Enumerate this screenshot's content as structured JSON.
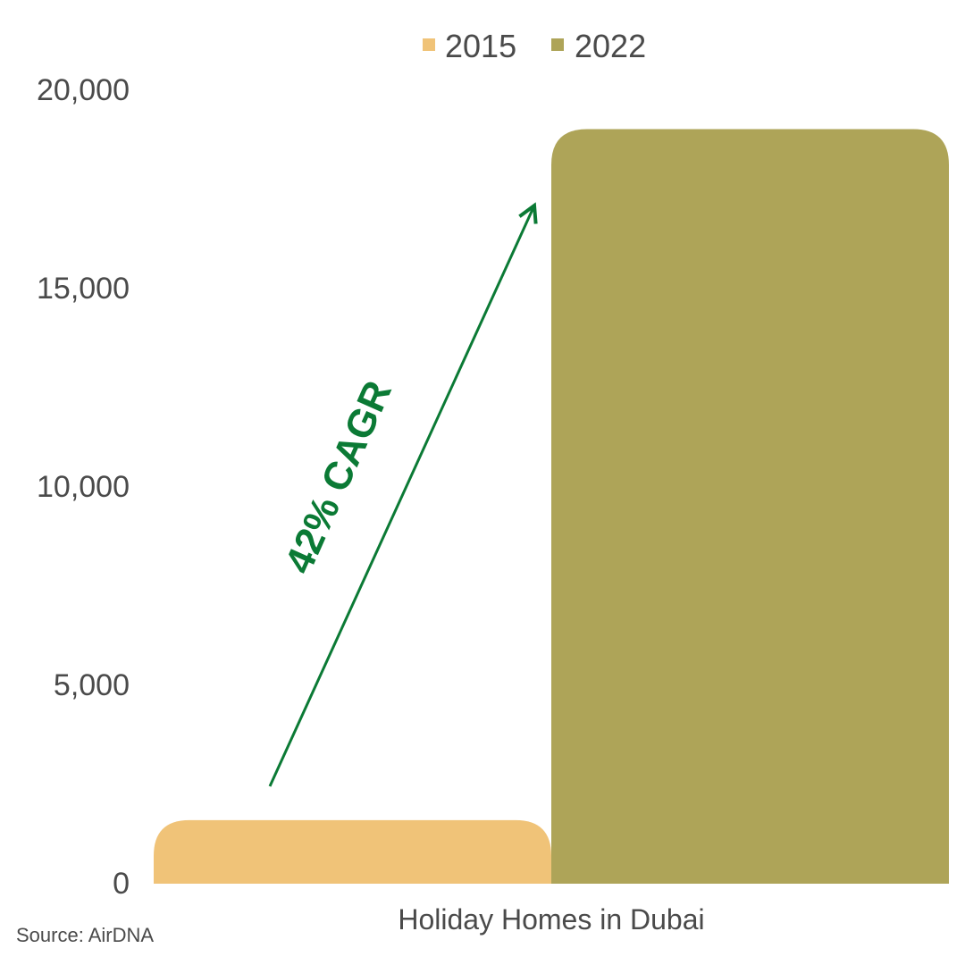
{
  "chart_data": {
    "type": "bar",
    "categories": [
      "Holiday Homes in Dubai"
    ],
    "series": [
      {
        "name": "2015",
        "values": [
          1600
        ],
        "color": "#f0c378"
      },
      {
        "name": "2022",
        "values": [
          19000
        ],
        "color": "#aea458"
      }
    ],
    "ylim": [
      0,
      20000
    ],
    "yticks": [
      "0",
      "5,000",
      "10,000",
      "15,000",
      "20,000"
    ],
    "ytick_values": [
      0,
      5000,
      10000,
      15000,
      20000
    ],
    "legend": {
      "position": "top",
      "items": [
        "2015",
        "2022"
      ]
    },
    "annotation": {
      "text": "42% CAGR",
      "color": "#0b7a35"
    },
    "grid": false,
    "source": "Source: AirDNA"
  }
}
